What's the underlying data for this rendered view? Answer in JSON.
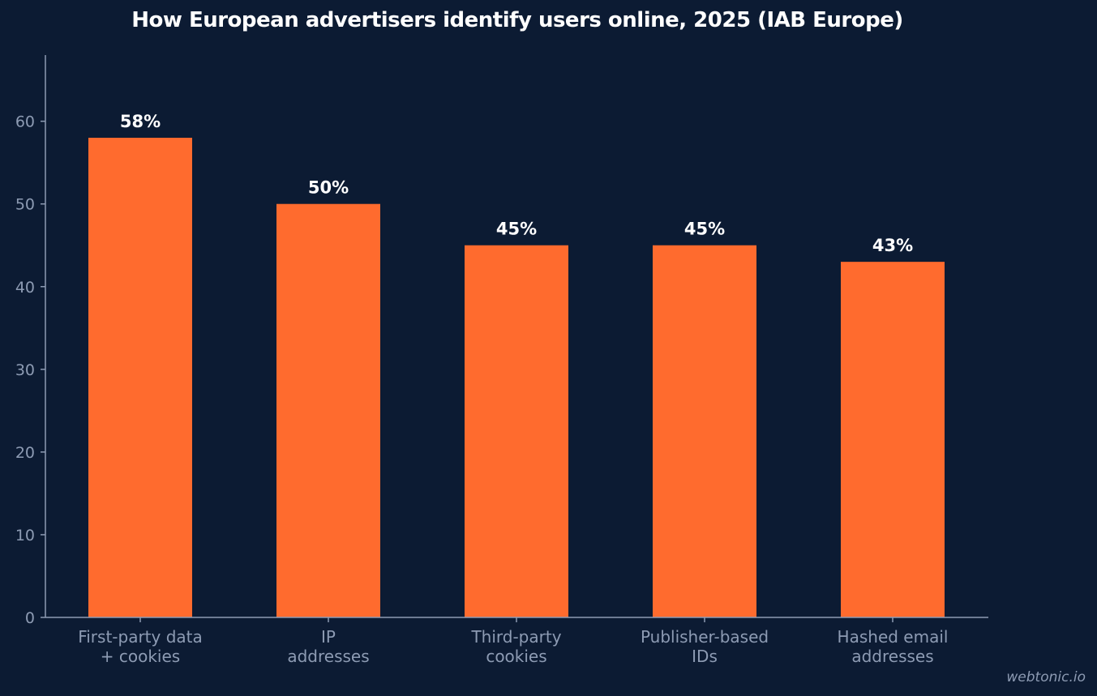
{
  "chart_data": {
    "type": "bar",
    "title": "How European advertisers identify users online, 2025 (IAB Europe)",
    "xlabel": "",
    "ylabel": "",
    "ylim": [
      0,
      68
    ],
    "yticks": [
      0,
      10,
      20,
      30,
      40,
      50,
      60
    ],
    "grid": false,
    "categories": [
      [
        "First-party data",
        "+ cookies"
      ],
      [
        "IP",
        "addresses"
      ],
      [
        "Third-party",
        "cookies"
      ],
      [
        "Publisher-based",
        "IDs"
      ],
      [
        "Hashed email",
        "addresses"
      ]
    ],
    "values": [
      58,
      50,
      45,
      45,
      43
    ],
    "value_labels": [
      "58%",
      "50%",
      "45%",
      "45%",
      "43%"
    ],
    "bar_color": "#ff6b2e"
  },
  "colors": {
    "background": "#0c1b33",
    "axis": "#8d9bb3",
    "text": "#ffffff"
  },
  "watermark": "webtonic.io"
}
